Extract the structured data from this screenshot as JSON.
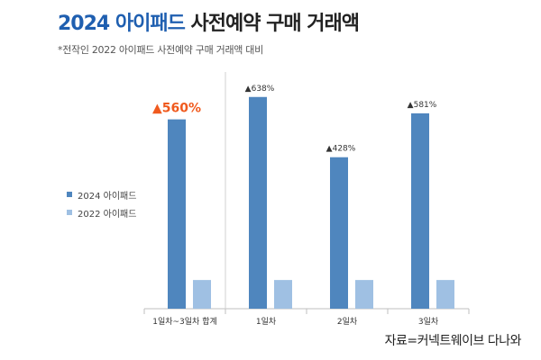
{
  "header": {
    "title_accent": "2024 아이패드",
    "title_rest": "사전예약 구매 거래액",
    "subtitle": "*전작인 2022 아이패드 사전예약 구매 거래액 대비"
  },
  "source": "자료=커넥트웨이브 다나와",
  "colors": {
    "series_2024": "#4f86be",
    "series_2022": "#9fc0e3",
    "highlight": "#f05a1e",
    "label": "#333333"
  },
  "chart_data": {
    "type": "bar",
    "categories": [
      "1일차~3일차 합계",
      "1일차",
      "2일차",
      "3일차"
    ],
    "series": [
      {
        "name": "2024 아이패드",
        "values": [
          6.6,
          7.38,
          5.28,
          6.81
        ]
      },
      {
        "name": "2022 아이패드",
        "values": [
          1,
          1,
          1,
          1
        ]
      }
    ],
    "data_labels": [
      "▲560%",
      "▲638%",
      "▲428%",
      "▲581%"
    ],
    "highlight_label_index": 0,
    "ylim": [
      0,
      8.0
    ],
    "legend": "left",
    "grid": false
  }
}
